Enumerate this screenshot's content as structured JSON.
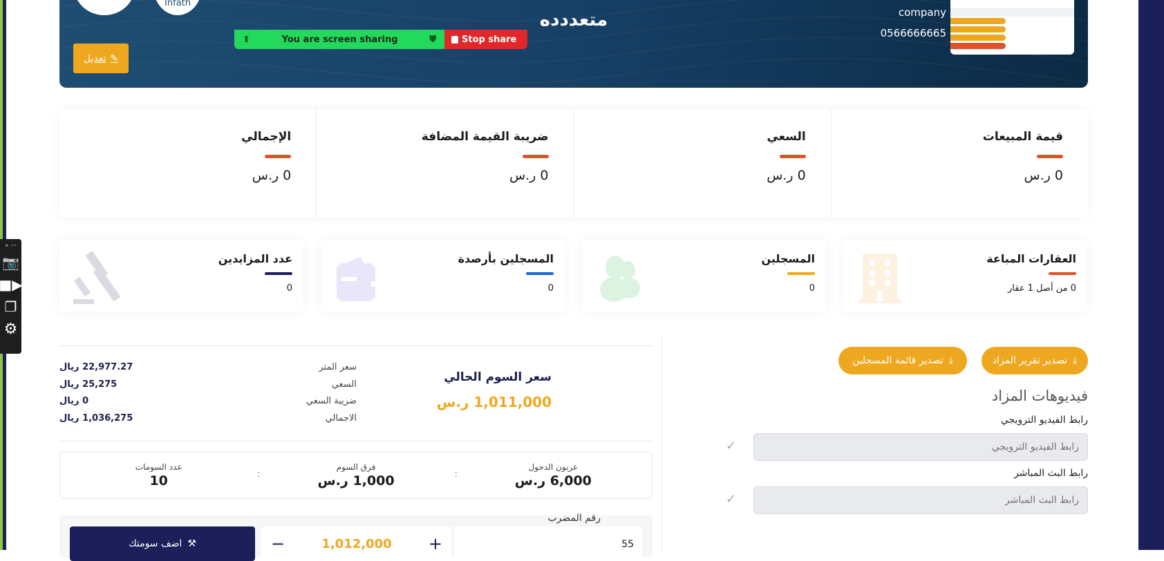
{
  "colors": {
    "accent": "#eea820",
    "navy": "#1c1f5a",
    "orange_red": "#e0522a",
    "blue": "#1e63d8",
    "share_green": "#22d95c",
    "share_red": "#e0282a"
  },
  "header": {
    "logo_text": "Infath",
    "title": "متعددده",
    "company": "company",
    "phone": "0566666665",
    "edit_label": "تعديل",
    "edit_icon": "pencil-icon"
  },
  "screen_share": {
    "message": "You are screen sharing",
    "stop_label": "Stop share"
  },
  "stats": [
    {
      "label": "قيمة المبيعات",
      "value": "0 ر.س"
    },
    {
      "label": "السعي",
      "value": "0 ر.س"
    },
    {
      "label": "ضريبة القيمة المضافة",
      "value": "0 ر.س"
    },
    {
      "label": "الإجمالي",
      "value": "0 ر.س"
    }
  ],
  "cards": [
    {
      "label": "العقارات المباعة",
      "value": "0 من أصل 1 عقار",
      "icon": "building-icon",
      "color": "#e0522a"
    },
    {
      "label": "المسجلين",
      "value": "0",
      "icon": "users-icon",
      "color": "#eea820"
    },
    {
      "label": "المسجلين بأرصدة",
      "value": "0",
      "icon": "wallet-icon",
      "color": "#1e63d8"
    },
    {
      "label": "عدد المزايدين",
      "value": "0",
      "icon": "gavel-icon",
      "color": "#1c1f5a"
    }
  ],
  "current_bid": {
    "title": "سعر السوم الحالي",
    "price": "1,011,000 ر.س"
  },
  "breakdown": [
    {
      "label": "سعر المتر",
      "value": "22,977.27 ريال"
    },
    {
      "label": "السعي",
      "value": "25,275 ريال"
    },
    {
      "label": "ضريبة السعي",
      "value": "0 ريال"
    },
    {
      "label": "الاجمالي",
      "value": "1,036,275 ريال"
    }
  ],
  "info": [
    {
      "label": "عربون الدخول",
      "value": "6,000 ر.س"
    },
    {
      "label": "فرق السوم",
      "value": "1,000 ر.س"
    },
    {
      "label": "عدد السومات",
      "value": "10"
    }
  ],
  "bid_form": {
    "paddle_label": "رقم المضرب",
    "paddle_value": "55",
    "amount": "1,012,000",
    "submit_label": "اضف سومتك"
  },
  "exports": {
    "auction_report": "تصدير تقرير المزاد",
    "registrants_list": "تصدير قائمة المسجلين"
  },
  "videos": {
    "heading": "فيديوهات المزاد",
    "promo_label": "رابط الفيديو الترويجي",
    "promo_placeholder": "رابط الفيديو الترويجي",
    "live_label": "رابط البث المباشر",
    "live_placeholder": "رابط البث المباشر"
  }
}
